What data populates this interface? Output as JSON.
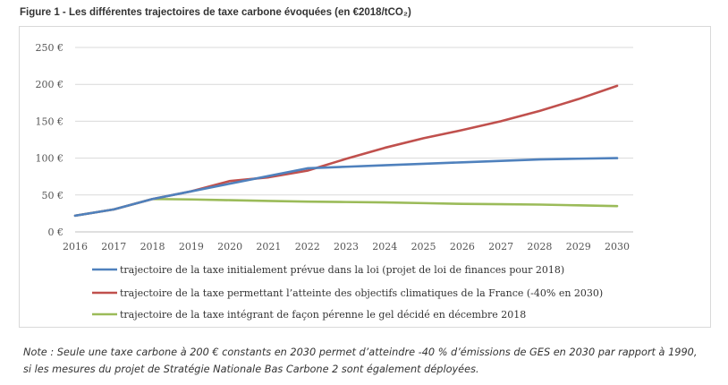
{
  "figure": {
    "title": "Figure 1 - Les différentes trajectoires de taxe carbone évoquées (en €2018/tCO₂)"
  },
  "note": {
    "line1": "Note : Seule une taxe carbone à 200 € constants en 2030 permet d’atteindre -40 % d’émissions de GES en 2030 par rapport à 1990,",
    "line2": "si les mesures du projet de Stratégie Nationale Bas Carbone 2 sont également déployées."
  },
  "chart_data": {
    "type": "line",
    "title": "",
    "xlabel": "",
    "ylabel": "",
    "x": [
      2016,
      2017,
      2018,
      2019,
      2020,
      2021,
      2022,
      2023,
      2024,
      2025,
      2026,
      2027,
      2028,
      2029,
      2030
    ],
    "ylim": [
      0,
      250
    ],
    "y_ticks": [
      "0 €",
      "50 €",
      "100 €",
      "150 €",
      "200 €",
      "250 €"
    ],
    "y_tick_values": [
      0,
      50,
      100,
      150,
      200,
      250
    ],
    "grid": "horizontal",
    "legend_position": "bottom",
    "series": [
      {
        "name": "trajectoire de la taxe initialement prévue dans la loi (projet de loi de finances pour 2018)",
        "color": "#4f81bd",
        "values": [
          22,
          30.5,
          44.6,
          55,
          65.4,
          75.8,
          86.2,
          88.3,
          90.3,
          92.3,
          94.3,
          96.3,
          98.2,
          99.2,
          100
        ]
      },
      {
        "name": "trajectoire de la taxe permettant l’atteinte des objectifs climatiques de la France (-40% en 2030)",
        "color": "#c0504d",
        "values": [
          22,
          30.5,
          44.6,
          55,
          69,
          74,
          83,
          99,
          114,
          127,
          138,
          150,
          164,
          180,
          198
        ]
      },
      {
        "name": "trajectoire de la taxe intégrant de façon pérenne le gel décidé en décembre 2018",
        "color": "#9bbb59",
        "values": [
          22,
          30.5,
          44.6,
          44,
          43,
          42,
          41,
          40.5,
          40,
          39,
          38,
          37.5,
          37,
          36,
          35
        ]
      }
    ]
  }
}
